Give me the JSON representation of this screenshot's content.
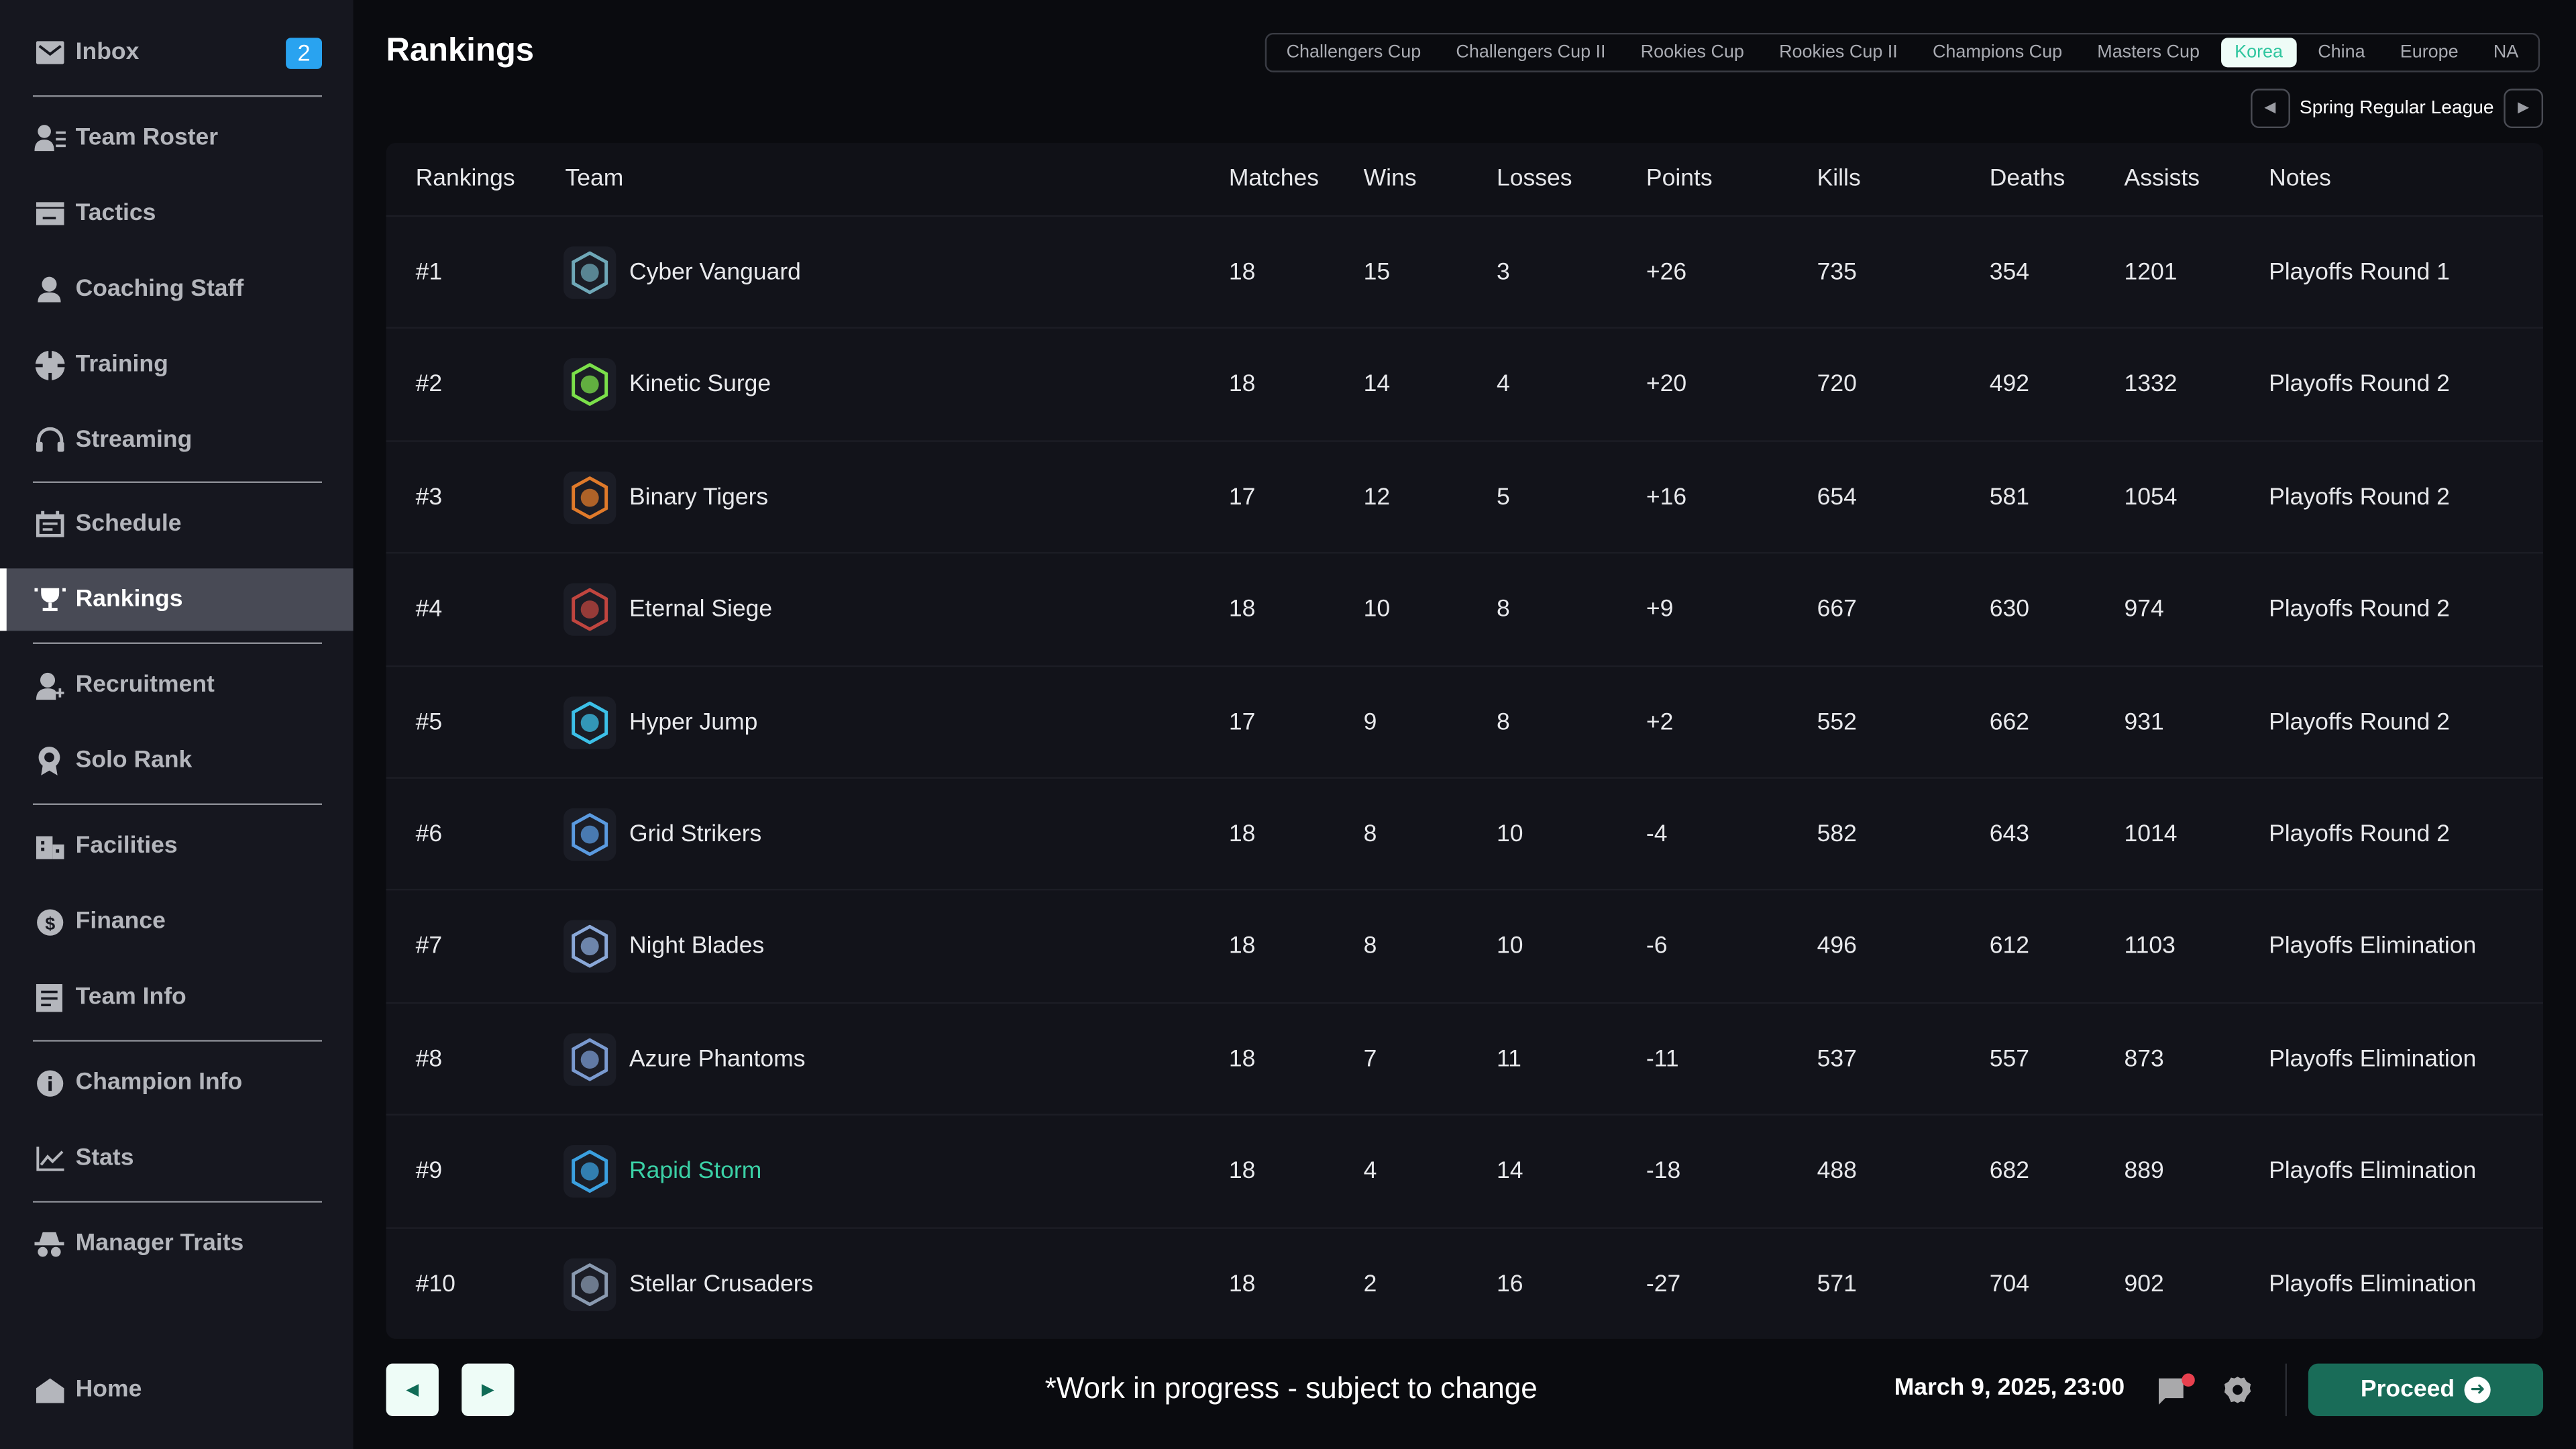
{
  "sidebar": {
    "inbox": {
      "label": "Inbox",
      "badge": "2"
    },
    "items": [
      {
        "label": "Team Roster",
        "icon": "team-roster-icon"
      },
      {
        "label": "Tactics",
        "icon": "tactics-icon"
      },
      {
        "label": "Coaching Staff",
        "icon": "coaching-staff-icon"
      },
      {
        "label": "Training",
        "icon": "crosshair-icon"
      },
      {
        "label": "Streaming",
        "icon": "headset-icon"
      },
      {
        "label": "Schedule",
        "icon": "calendar-icon"
      },
      {
        "label": "Rankings",
        "icon": "trophy-icon",
        "active": true
      },
      {
        "label": "Recruitment",
        "icon": "add-user-icon"
      },
      {
        "label": "Solo Rank",
        "icon": "medal-icon"
      },
      {
        "label": "Facilities",
        "icon": "building-icon"
      },
      {
        "label": "Finance",
        "icon": "coin-icon"
      },
      {
        "label": "Team Info",
        "icon": "document-icon"
      },
      {
        "label": "Champion Info",
        "icon": "info-icon"
      },
      {
        "label": "Stats",
        "icon": "line-chart-icon"
      },
      {
        "label": "Manager Traits",
        "icon": "spy-icon"
      }
    ],
    "home": "Home"
  },
  "header": {
    "title": "Rankings",
    "tabs": [
      "Challengers Cup",
      "Challengers Cup II",
      "Rookies Cup",
      "Rookies Cup II",
      "Champions Cup",
      "Masters Cup",
      "Korea",
      "China",
      "Europe",
      "NA"
    ],
    "selected_tab": "Korea",
    "season": "Spring Regular League"
  },
  "table": {
    "columns": [
      "Rankings",
      "Team",
      "Matches",
      "Wins",
      "Losses",
      "Points",
      "Kills",
      "Deaths",
      "Assists",
      "Notes"
    ],
    "rows": [
      [
        "#1",
        "Cyber Vanguard",
        "18",
        "15",
        "3",
        "+26",
        "735",
        "354",
        "1201",
        "Playoffs Round 1"
      ],
      [
        "#2",
        "Kinetic Surge",
        "18",
        "14",
        "4",
        "+20",
        "720",
        "492",
        "1332",
        "Playoffs Round 2"
      ],
      [
        "#3",
        "Binary Tigers",
        "17",
        "12",
        "5",
        "+16",
        "654",
        "581",
        "1054",
        "Playoffs Round 2"
      ],
      [
        "#4",
        "Eternal Siege",
        "18",
        "10",
        "8",
        "+9",
        "667",
        "630",
        "974",
        "Playoffs Round 2"
      ],
      [
        "#5",
        "Hyper Jump",
        "17",
        "9",
        "8",
        "+2",
        "552",
        "662",
        "931",
        "Playoffs Round 2"
      ],
      [
        "#6",
        "Grid Strikers",
        "18",
        "8",
        "10",
        "-4",
        "582",
        "643",
        "1014",
        "Playoffs Round 2"
      ],
      [
        "#7",
        "Night Blades",
        "18",
        "8",
        "10",
        "-6",
        "496",
        "612",
        "1103",
        "Playoffs Elimination"
      ],
      [
        "#8",
        "Azure Phantoms",
        "18",
        "7",
        "11",
        "-11",
        "537",
        "557",
        "873",
        "Playoffs Elimination"
      ],
      [
        "#9",
        "Rapid Storm",
        "18",
        "4",
        "14",
        "-18",
        "488",
        "682",
        "889",
        "Playoffs Elimination"
      ],
      [
        "#10",
        "Stellar Crusaders",
        "18",
        "2",
        "16",
        "-27",
        "571",
        "704",
        "902",
        "Playoffs Elimination"
      ]
    ],
    "highlighted_team": "Rapid Storm",
    "logo_colors": [
      "#6fa8b8",
      "#7be04a",
      "#e07a2a",
      "#c0453f",
      "#3cc0e8",
      "#5a9ae0",
      "#8aa8d8",
      "#7a9ad0",
      "#3ba0e0",
      "#8a9ab0"
    ]
  },
  "footer": {
    "notice": "*Work in progress - subject to change",
    "datetime": "March 9, 2025, 23:00",
    "proceed": "Proceed"
  },
  "colors": {
    "accent": "#3bd1a6",
    "proceed": "#196c58",
    "badge": "#29a3f0",
    "notification": "#e8404e"
  }
}
